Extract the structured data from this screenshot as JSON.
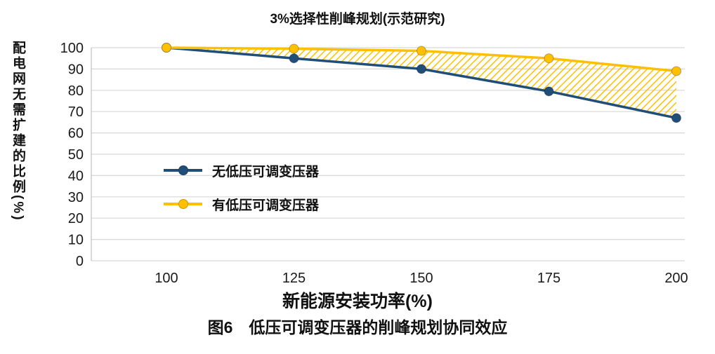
{
  "figure": {
    "caption": "图6　低压可调变压器的削峰规划协同效应"
  },
  "chart_data": {
    "type": "line",
    "title": "3%选择性削峰规划(示范研究)",
    "xlabel": "新能源安装功率(%)",
    "ylabel": "配电网无需扩建的比例(%)",
    "x": [
      100,
      125,
      150,
      175,
      200
    ],
    "xticks": [
      100,
      125,
      150,
      175,
      200
    ],
    "yticks": [
      0,
      10,
      20,
      30,
      40,
      50,
      60,
      70,
      80,
      90,
      100
    ],
    "xlim": [
      100,
      200
    ],
    "ylim": [
      0,
      100
    ],
    "grid": "horizontal",
    "legend_position": "inside-left",
    "series": [
      {
        "name": "无低压可调变压器",
        "color": "#1f4e79",
        "values": [
          100,
          95,
          90,
          79.5,
          67
        ]
      },
      {
        "name": "有低压可调变压器",
        "color": "#ffc000",
        "values": [
          100,
          99.5,
          98.5,
          95,
          89
        ]
      }
    ],
    "fill_between": {
      "style": "diagonal-hatch",
      "color": "#ffc000",
      "between": [
        "有低压可调变压器",
        "无低压可调变压器"
      ]
    }
  }
}
